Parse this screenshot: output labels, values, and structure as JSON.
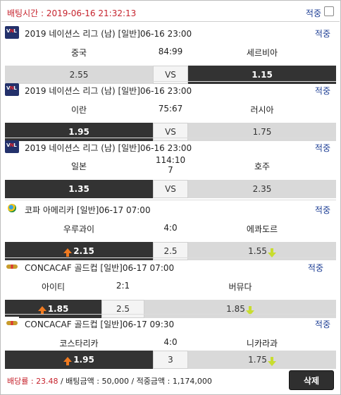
{
  "header": {
    "bet_time_label": "배팅시간 : 2019-06-16 21:32:13",
    "all_label": "적중"
  },
  "games": [
    {
      "logo": "vnl-logo",
      "title": "2019 네이션스 리그 (남) [일반]06-16 23:00",
      "hit": "적중",
      "home": "중국",
      "score": "84:99",
      "away": "세르비아",
      "odds_home": "2.55",
      "mid": "VS",
      "odds_away": "1.15",
      "selected": "away"
    },
    {
      "logo": "vnl-logo",
      "title": "2019 네이션스 리그 (남) [일반]06-16 23:00",
      "hit": "적중",
      "home": "이란",
      "score": "75:67",
      "away": "러시아",
      "odds_home": "1.95",
      "mid": "VS",
      "odds_away": "1.75",
      "selected": "home"
    },
    {
      "logo": "vnl-logo",
      "title": "2019 네이션스 리그 (남) [일반]06-16 23:00",
      "hit": "적중",
      "home": "일본",
      "score_line1": "114:10",
      "score_line2": "7",
      "away": "호주",
      "odds_home": "1.35",
      "mid": "VS",
      "odds_away": "2.35",
      "selected": "home"
    },
    {
      "logo": "copa-america-logo",
      "title": "코파 아메리카 [일반]06-17 07:00",
      "hit": "적중",
      "home": "우루과이",
      "score": "4:0",
      "away": "에콰도르",
      "odds_home": "2.15",
      "mid": "2.5",
      "odds_away": "1.55",
      "selected": "home"
    },
    {
      "logo": "concacaf-logo",
      "title": "CONCACAF 골드컵 [일반]06-17 07:00",
      "hit": "적중",
      "home": "아이티",
      "score": "2:1",
      "away": "버뮤다",
      "odds_home": "1.85",
      "mid": "2.5",
      "odds_away": "1.85",
      "selected": "home"
    },
    {
      "logo": "concacaf-logo",
      "title": "CONCACAF 골드컵 [일반]06-17 09:30",
      "hit": "적중",
      "home": "코스타리카",
      "score": "4:0",
      "away": "니카라과",
      "odds_home": "1.95",
      "mid": "3",
      "odds_away": "1.75",
      "selected": "home"
    }
  ],
  "footer": {
    "rate_label": "배당률 : ",
    "rate_value": "23.48",
    "amount_label": " / 배팅금액 : ",
    "amount_value": "50,000",
    "win_label": " / 적중금액 : ",
    "win_value": "1,174,000",
    "delete_label": "삭제"
  },
  "colors": {
    "accent_red": "#c6232d",
    "link_blue": "#1e3f95",
    "selected_dark": "#333333",
    "odds_gray": "#d9d9d9",
    "up_arrow": "#f07a20",
    "down_arrow": "#c8dd2f"
  }
}
